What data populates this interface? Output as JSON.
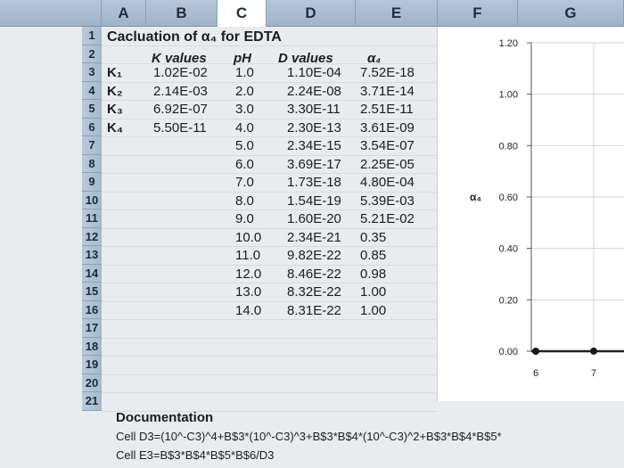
{
  "columns": [
    "A",
    "B",
    "C",
    "D",
    "E",
    "F",
    "G"
  ],
  "rows": [
    "1",
    "2",
    "3",
    "4",
    "5",
    "6",
    "7",
    "8",
    "9",
    "10",
    "11",
    "12",
    "13",
    "14",
    "15",
    "16",
    "17",
    "18",
    "19",
    "20",
    "21"
  ],
  "title": "Cacluation of α₄ for EDTA",
  "headers": {
    "k_values": "K values",
    "ph": "pH",
    "d_values": "D values",
    "alpha4": "α₄"
  },
  "k_labels": [
    "K₁",
    "K₂",
    "K₃",
    "K₄"
  ],
  "k_values": [
    "1.02E-02",
    "2.14E-03",
    "6.92E-07",
    "5.50E-11"
  ],
  "ph": [
    "1.0",
    "2.0",
    "3.0",
    "4.0",
    "5.0",
    "6.0",
    "7.0",
    "8.0",
    "9.0",
    "10.0",
    "11.0",
    "12.0",
    "13.0",
    "14.0"
  ],
  "d_values": [
    "1.10E-04",
    "2.24E-08",
    "3.30E-11",
    "2.30E-13",
    "2.34E-15",
    "3.69E-17",
    "1.73E-18",
    "1.54E-19",
    "1.60E-20",
    "2.34E-21",
    "9.82E-22",
    "8.46E-22",
    "8.32E-22",
    "8.31E-22"
  ],
  "alpha4": [
    "7.52E-18",
    "3.71E-14",
    "2.51E-11",
    "3.61E-09",
    "3.54E-07",
    "2.25E-05",
    "4.80E-04",
    "5.39E-03",
    "5.21E-02",
    "0.35",
    "0.85",
    "0.98",
    "1.00",
    "1.00"
  ],
  "documentation": {
    "title": "Documentation",
    "line1": "Cell D3=(10^-C3)^4+B$3*(10^-C3)^3+B$3*B$4*(10^-C3)^2+B$3*B$4*B$5*",
    "line2": "Cell E3=B$3*B$4*B$5*B$6/D3"
  },
  "chart_data": {
    "type": "scatter",
    "ylabel": "α₄",
    "ylim": [
      0,
      1.2
    ],
    "yticks": [
      "1.20",
      "1.00",
      "0.80",
      "0.60",
      "0.40",
      "0.20",
      "0.00"
    ],
    "xticks": [
      "6",
      "7"
    ],
    "x": [
      6,
      7
    ],
    "y": [
      2e-05,
      0.00048
    ]
  }
}
